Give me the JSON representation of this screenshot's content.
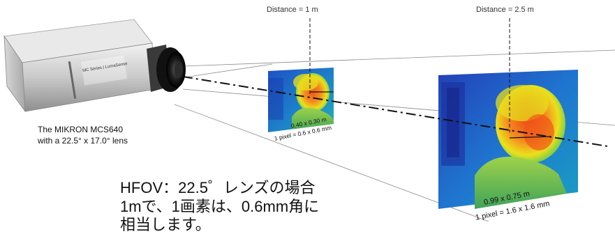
{
  "labels": {
    "distance_1": "Distance = 1 m",
    "distance_2": "Distance = 2.5 m",
    "caption_line1": "The MIKRON MCS640",
    "caption_line2": "with a 22.5° x 17.0° lens",
    "dim_near_line1": "0.40 x 0.30 m",
    "dim_near_line2": "1 pixel = 0.6 x 0.6 mm",
    "dim_far_line1": "0.99 x 0.75 m",
    "dim_far_line2": "1 pixel = 1.6 x 1.6 mm",
    "camera_label": "MC Series | LumaSense",
    "note_line1": "HFOV：22.5゜レンズの場合",
    "note_line2": "1mで、1画素は、0.6mm角に",
    "note_line3": "相当します。"
  },
  "colors": {
    "thermal_background": "#1f6fd0",
    "thermal_hot": "#f27a1e",
    "thermal_warm": "#e8e21a",
    "guide_line": "#8a8a8a",
    "axis_line": "#111111"
  },
  "icons": {
    "camera": "thermal-camera-icon"
  }
}
